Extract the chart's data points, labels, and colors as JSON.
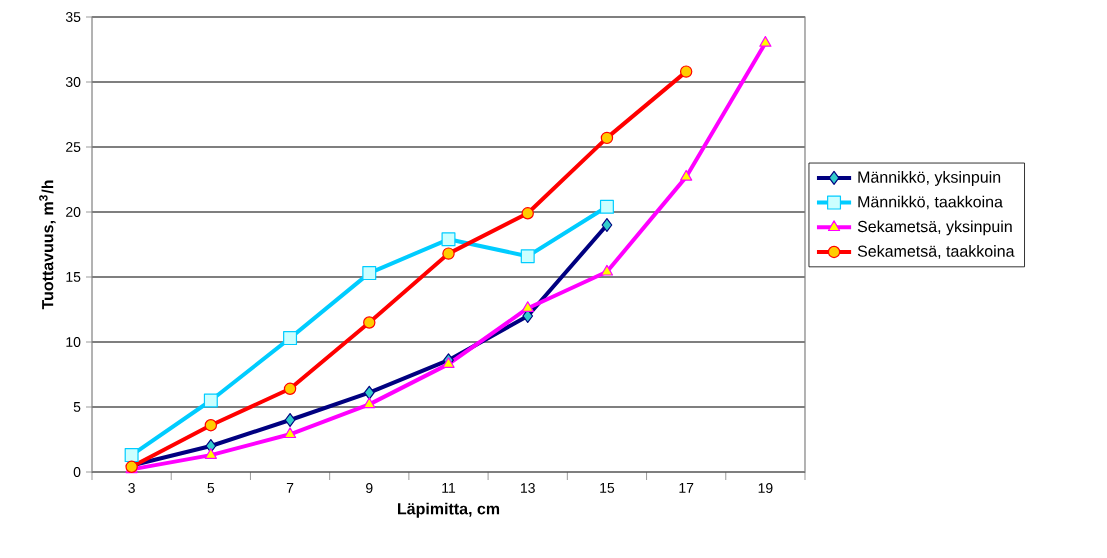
{
  "chart_data": {
    "type": "line",
    "xlabel": "Läpimitta, cm",
    "ylabel": "Tuottavuus, m$^{3}$/h",
    "categories": [
      "3",
      "5",
      "7",
      "9",
      "11",
      "13",
      "15",
      "17",
      "19"
    ],
    "series": [
      {
        "name": "Männikkö, yksinpuin",
        "color": "#000080",
        "marker": "diamond",
        "values": [
          0.5,
          2.0,
          4.0,
          6.1,
          8.6,
          12.0,
          19.0,
          null,
          null
        ]
      },
      {
        "name": "Männikkö, taakkoina",
        "color": "#00ccff",
        "marker": "square",
        "values": [
          1.3,
          5.5,
          10.3,
          15.3,
          17.9,
          16.6,
          20.4,
          null,
          null
        ]
      },
      {
        "name": "Sekametsä, yksinpuin",
        "color": "#ff00ff",
        "marker": "triangle",
        "values": [
          0.2,
          1.3,
          2.9,
          5.2,
          8.3,
          12.6,
          15.4,
          22.7,
          33.0
        ]
      },
      {
        "name": "Sekametsä, taakkoina",
        "color": "#ff0000",
        "marker": "circle",
        "values": [
          0.4,
          3.6,
          6.4,
          11.5,
          16.8,
          19.9,
          25.7,
          30.8,
          null
        ]
      }
    ],
    "ylim": [
      0,
      35
    ],
    "yticks": [
      0,
      5,
      10,
      15,
      20,
      25,
      30,
      35
    ],
    "grid": "y",
    "legend": "right",
    "line_style": "solid"
  }
}
